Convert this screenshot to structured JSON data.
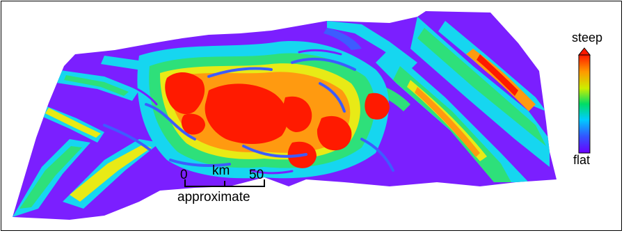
{
  "legend": {
    "top_label": "steep",
    "bottom_label": "flat",
    "colors": [
      "#6a00ff",
      "#3355ff",
      "#00ccff",
      "#00dd66",
      "#ccee00",
      "#ff9900",
      "#ff1a00"
    ]
  },
  "scale_bar": {
    "start_label": "0",
    "unit_label": "km",
    "end_label": "50",
    "note": "approximate"
  },
  "surface_colors": {
    "flat": "#7b1fff",
    "low": "#3d5cff",
    "mid": "#16d6f0",
    "green": "#2ee07a",
    "yellow": "#e8ea16",
    "orange": "#ff9a10",
    "steep": "#ff1a00"
  }
}
